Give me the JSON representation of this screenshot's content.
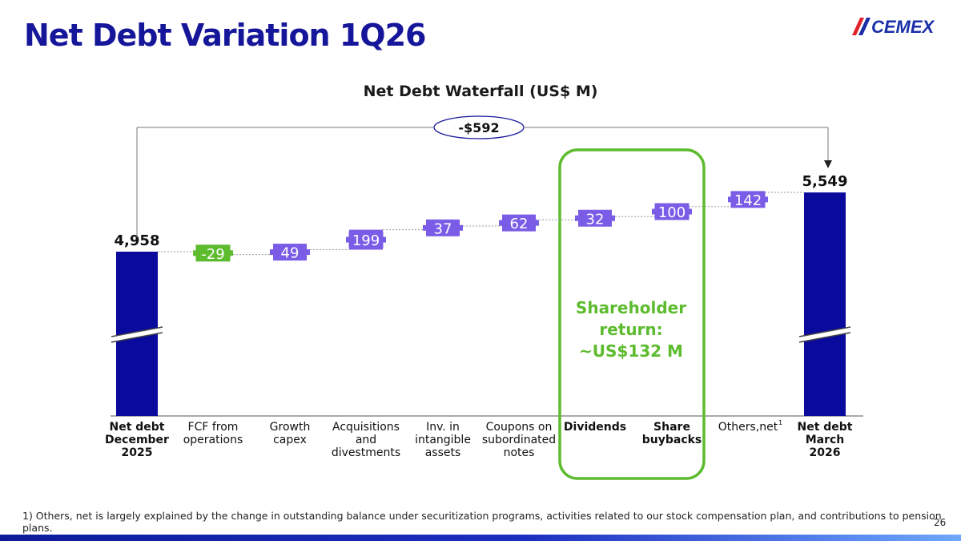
{
  "page": {
    "title": "Net Debt Variation 1Q26",
    "logo_text": "CEMEX",
    "footnote": "1) Others, net is largely explained by the change in outstanding balance under securitization programs, activities related to our stock compensation plan, and contributions to pension plans.",
    "page_number": "26"
  },
  "colors": {
    "title": "#16169a",
    "total_bar": "#0a0a9c",
    "increase": "#7b5ce6",
    "decrease": "#5dbb2e",
    "highlight": "#5dbb2e",
    "logo_red": "#e3232c",
    "logo_blue": "#1a2ea8"
  },
  "chart_data": {
    "type": "waterfall",
    "title": "Net Debt Waterfall (US$ M)",
    "unit": "US$ M",
    "categories": [
      "Net debt December 2025",
      "FCF from operations",
      "Growth capex",
      "Acquisitions and divestments",
      "Inv. in intangible assets",
      "Coupons on subordinated notes",
      "Dividends",
      "Share buybacks",
      "Others,net",
      "Net debt March 2026"
    ],
    "category_lines": [
      [
        "Net debt",
        "December",
        "2025"
      ],
      [
        "FCF from",
        "operations"
      ],
      [
        "Growth",
        "capex"
      ],
      [
        "Acquisitions",
        "and",
        "divestments"
      ],
      [
        "Inv. in",
        "intangible",
        "assets"
      ],
      [
        "Coupons on",
        "subordinated",
        "notes"
      ],
      [
        "Dividends"
      ],
      [
        "Share",
        "buybacks"
      ],
      [
        "Others,net"
      ],
      [
        "Net debt",
        "March",
        "2026"
      ]
    ],
    "category_bold": [
      true,
      false,
      false,
      false,
      false,
      false,
      true,
      true,
      false,
      true
    ],
    "category_superscript": [
      "",
      "",
      "",
      "",
      "",
      "",
      "",
      "",
      "1",
      ""
    ],
    "bar_kind": [
      "total",
      "change",
      "change",
      "change",
      "change",
      "change",
      "change",
      "change",
      "change",
      "total"
    ],
    "values": [
      4958,
      -29,
      49,
      199,
      37,
      62,
      32,
      100,
      142,
      5549
    ],
    "value_labels": [
      "4,958",
      "-29",
      "49",
      "199",
      "37",
      "62",
      "32",
      "100",
      "142",
      "5,549"
    ],
    "total_change_label": "-$592",
    "highlight": {
      "categories": [
        "Dividends",
        "Share buybacks"
      ],
      "text_lines": [
        "Shareholder",
        "return:",
        "~US$132 M"
      ]
    },
    "axis_break": true,
    "grid": false,
    "legend": "none"
  }
}
